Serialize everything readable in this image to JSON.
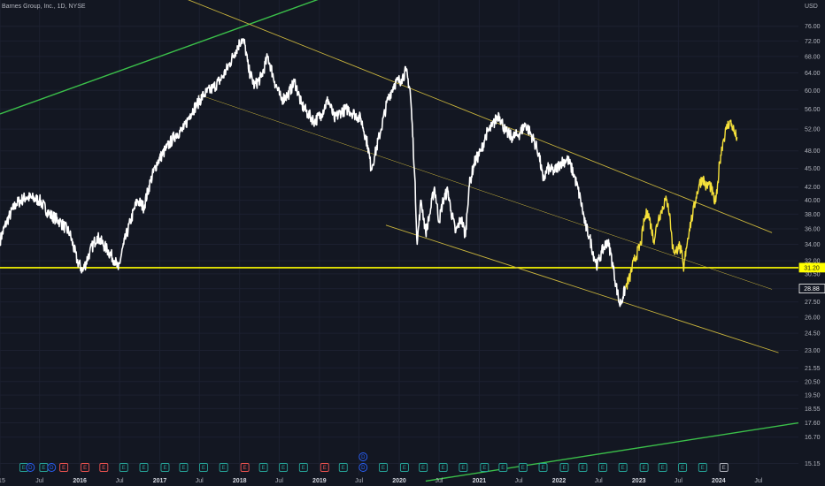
{
  "header": {
    "title": "Barnes Group, Inc., 1D, NYSE"
  },
  "colors": {
    "background": "#131722",
    "price_white": "#ffffff",
    "price_recent": "#f5e03a",
    "support": "#ffff00",
    "channel": "#c9b43c",
    "trend_green": "#3bc04a",
    "earnings_green": "#26a69a",
    "earnings_red": "#ef5350",
    "dividend_blue": "#2962ff",
    "axis_text": "#b2b5be"
  },
  "chart_data": {
    "type": "line",
    "title": "",
    "currency": "USD",
    "y_scale": "log",
    "ylim": [
      14.5,
      80
    ],
    "xlim": [
      "2015-01-01",
      "2024-12-31"
    ],
    "y_ticks": [
      15.15,
      16.7,
      17.6,
      18.55,
      19.5,
      20.5,
      21.55,
      23.0,
      24.5,
      26.0,
      27.5,
      28.88,
      30.5,
      31.2,
      32.0,
      34.0,
      36.0,
      38.0,
      40.0,
      42.0,
      45.0,
      48.0,
      52.0,
      56.0,
      60.0,
      64.0,
      68.0,
      72.0,
      76.0
    ],
    "y_tick_labels": [
      "15.15",
      "16.70",
      "17.60",
      "18.55",
      "19.50",
      "20.50",
      "21.55",
      "23.00",
      "24.50",
      "26.00",
      "27.50",
      "28.88",
      "30.50",
      "31.20",
      "32.00",
      "34.00",
      "36.00",
      "38.00",
      "40.00",
      "42.00",
      "45.00",
      "48.00",
      "52.00",
      "56.00",
      "60.00",
      "64.00",
      "68.00",
      "72.00",
      "76.00"
    ],
    "x_ticks": [
      {
        "label": "015",
        "date": "2015-01-01",
        "year": false
      },
      {
        "label": "Jul",
        "date": "2015-07-01",
        "year": false
      },
      {
        "label": "2016",
        "date": "2016-01-01",
        "year": true
      },
      {
        "label": "Jul",
        "date": "2016-07-01",
        "year": false
      },
      {
        "label": "2017",
        "date": "2017-01-01",
        "year": true
      },
      {
        "label": "Jul",
        "date": "2017-07-01",
        "year": false
      },
      {
        "label": "2018",
        "date": "2018-01-01",
        "year": true
      },
      {
        "label": "Jul",
        "date": "2018-07-01",
        "year": false
      },
      {
        "label": "2019",
        "date": "2019-01-01",
        "year": true
      },
      {
        "label": "Jul",
        "date": "2019-07-01",
        "year": false
      },
      {
        "label": "2020",
        "date": "2020-01-01",
        "year": true
      },
      {
        "label": "Jul",
        "date": "2020-07-01",
        "year": false
      },
      {
        "label": "2021",
        "date": "2021-01-01",
        "year": true
      },
      {
        "label": "Jul",
        "date": "2021-07-01",
        "year": false
      },
      {
        "label": "2022",
        "date": "2022-01-01",
        "year": true
      },
      {
        "label": "Jul",
        "date": "2022-07-01",
        "year": false
      },
      {
        "label": "2023",
        "date": "2023-01-01",
        "year": true
      },
      {
        "label": "Jul",
        "date": "2023-07-01",
        "year": false
      },
      {
        "label": "2024",
        "date": "2024-01-01",
        "year": true
      },
      {
        "label": "Jul",
        "date": "2024-07-01",
        "year": false
      }
    ],
    "series": [
      {
        "color": "#ffffff",
        "points": [
          [
            "2015-01-01",
            34.5
          ],
          [
            "2015-02-01",
            37.0
          ],
          [
            "2015-03-15",
            39.5
          ],
          [
            "2015-05-01",
            40.5
          ],
          [
            "2015-07-01",
            40.0
          ],
          [
            "2015-08-15",
            38.0
          ],
          [
            "2015-10-01",
            37.0
          ],
          [
            "2015-11-15",
            35.5
          ],
          [
            "2015-12-20",
            32.0
          ],
          [
            "2016-01-15",
            30.8
          ],
          [
            "2016-02-15",
            33.0
          ],
          [
            "2016-03-20",
            35.0
          ],
          [
            "2016-05-01",
            33.5
          ],
          [
            "2016-06-10",
            32.0
          ],
          [
            "2016-06-25",
            31.0
          ],
          [
            "2016-07-20",
            34.0
          ],
          [
            "2016-08-20",
            37.0
          ],
          [
            "2016-09-20",
            40.0
          ],
          [
            "2016-10-20",
            39.0
          ],
          [
            "2016-11-20",
            43.0
          ],
          [
            "2016-12-20",
            46.0
          ],
          [
            "2017-02-01",
            48.5
          ],
          [
            "2017-03-15",
            51.0
          ],
          [
            "2017-04-20",
            52.0
          ],
          [
            "2017-05-20",
            55.0
          ],
          [
            "2017-06-20",
            57.0
          ],
          [
            "2017-07-20",
            59.0
          ],
          [
            "2017-09-01",
            60.5
          ],
          [
            "2017-10-15",
            63.0
          ],
          [
            "2017-11-15",
            66.0
          ],
          [
            "2017-12-10",
            69.0
          ],
          [
            "2018-01-10",
            72.5
          ],
          [
            "2018-01-25",
            71.0
          ],
          [
            "2018-02-10",
            65.0
          ],
          [
            "2018-03-10",
            61.0
          ],
          [
            "2018-04-10",
            63.0
          ],
          [
            "2018-05-10",
            68.0
          ],
          [
            "2018-06-10",
            62.0
          ],
          [
            "2018-07-10",
            58.0
          ],
          [
            "2018-08-10",
            59.0
          ],
          [
            "2018-09-10",
            62.0
          ],
          [
            "2018-10-10",
            57.0
          ],
          [
            "2018-11-10",
            55.0
          ],
          [
            "2018-12-10",
            53.5
          ],
          [
            "2019-01-10",
            55.0
          ],
          [
            "2019-02-10",
            58.0
          ],
          [
            "2019-03-10",
            54.0
          ],
          [
            "2019-04-10",
            55.5
          ],
          [
            "2019-05-10",
            56.0
          ],
          [
            "2019-06-10",
            55.0
          ],
          [
            "2019-07-10",
            54.0
          ],
          [
            "2019-08-10",
            49.0
          ],
          [
            "2019-08-25",
            45.0
          ],
          [
            "2019-09-10",
            47.0
          ],
          [
            "2019-10-10",
            52.0
          ],
          [
            "2019-11-10",
            58.0
          ],
          [
            "2019-12-10",
            61.5
          ],
          [
            "2020-01-10",
            62.5
          ],
          [
            "2020-02-01",
            64.5
          ],
          [
            "2020-02-20",
            60.0
          ],
          [
            "2020-03-10",
            45.0
          ],
          [
            "2020-03-23",
            34.0
          ],
          [
            "2020-04-10",
            40.0
          ],
          [
            "2020-05-01",
            35.5
          ],
          [
            "2020-05-20",
            38.0
          ],
          [
            "2020-06-10",
            42.0
          ],
          [
            "2020-07-01",
            37.0
          ],
          [
            "2020-07-20",
            40.0
          ],
          [
            "2020-08-10",
            41.5
          ],
          [
            "2020-08-25",
            38.5
          ],
          [
            "2020-09-15",
            35.5
          ],
          [
            "2020-10-10",
            37.5
          ],
          [
            "2020-10-30",
            35.0
          ],
          [
            "2020-11-15",
            42.0
          ],
          [
            "2020-12-10",
            46.0
          ],
          [
            "2021-01-10",
            48.0
          ],
          [
            "2021-02-01",
            51.0
          ],
          [
            "2021-03-01",
            52.5
          ],
          [
            "2021-04-01",
            55.0
          ],
          [
            "2021-05-01",
            51.5
          ],
          [
            "2021-06-01",
            50.5
          ],
          [
            "2021-07-01",
            51.0
          ],
          [
            "2021-08-01",
            53.0
          ],
          [
            "2021-09-01",
            50.5
          ],
          [
            "2021-10-01",
            47.5
          ],
          [
            "2021-10-20",
            43.0
          ],
          [
            "2021-11-10",
            45.0
          ],
          [
            "2021-12-10",
            44.5
          ],
          [
            "2022-01-10",
            46.0
          ],
          [
            "2022-02-10",
            46.5
          ],
          [
            "2022-03-10",
            44.0
          ],
          [
            "2022-04-10",
            40.0
          ],
          [
            "2022-05-01",
            36.5
          ],
          [
            "2022-05-20",
            35.0
          ],
          [
            "2022-06-10",
            32.5
          ],
          [
            "2022-06-25",
            31.5
          ],
          [
            "2022-07-15",
            33.0
          ],
          [
            "2022-08-10",
            34.5
          ],
          [
            "2022-08-25",
            33.0
          ],
          [
            "2022-09-10",
            30.5
          ],
          [
            "2022-09-25",
            28.5
          ],
          [
            "2022-10-05",
            27.2
          ],
          [
            "2022-10-20",
            28.0
          ],
          [
            "2022-11-01",
            29.0
          ]
        ]
      },
      {
        "color": "#f5e03a",
        "points": [
          [
            "2022-11-01",
            29.0
          ],
          [
            "2022-11-20",
            30.0
          ],
          [
            "2022-12-10",
            32.0
          ],
          [
            "2023-01-10",
            34.0
          ],
          [
            "2023-01-25",
            37.0
          ],
          [
            "2023-02-10",
            38.5
          ],
          [
            "2023-02-25",
            36.5
          ],
          [
            "2023-03-10",
            34.5
          ],
          [
            "2023-04-01",
            37.5
          ],
          [
            "2023-04-15",
            38.5
          ],
          [
            "2023-05-01",
            40.0
          ],
          [
            "2023-05-15",
            39.5
          ],
          [
            "2023-05-25",
            37.0
          ],
          [
            "2023-06-05",
            33.5
          ],
          [
            "2023-06-20",
            33.0
          ],
          [
            "2023-07-01",
            34.0
          ],
          [
            "2023-07-15",
            33.0
          ],
          [
            "2023-07-25",
            30.8
          ],
          [
            "2023-08-05",
            33.5
          ],
          [
            "2023-08-20",
            36.0
          ],
          [
            "2023-09-05",
            38.0
          ],
          [
            "2023-09-20",
            40.5
          ],
          [
            "2023-10-05",
            42.5
          ],
          [
            "2023-10-20",
            43.5
          ],
          [
            "2023-11-05",
            42.0
          ],
          [
            "2023-11-20",
            42.5
          ],
          [
            "2023-12-05",
            41.0
          ],
          [
            "2023-12-15",
            39.5
          ],
          [
            "2023-12-25",
            41.0
          ],
          [
            "2024-01-05",
            46.0
          ],
          [
            "2024-01-20",
            49.5
          ],
          [
            "2024-02-05",
            52.0
          ],
          [
            "2024-02-20",
            53.5
          ],
          [
            "2024-03-05",
            52.5
          ],
          [
            "2024-03-15",
            51.0
          ],
          [
            "2024-03-25",
            50.5
          ]
        ]
      }
    ],
    "lines": [
      {
        "kind": "support",
        "color": "#ffff00",
        "width": 1.6,
        "from": [
          "2015-01-01",
          31.2
        ],
        "to": [
          "2024-12-31",
          31.2
        ]
      },
      {
        "kind": "trend-upper",
        "color": "#3bc04a",
        "width": 1.4,
        "from": [
          "2015-01-01",
          55.0
        ],
        "to": [
          "2019-12-15",
          93.0
        ]
      },
      {
        "kind": "trend-lower",
        "color": "#3bc04a",
        "width": 1.4,
        "from": [
          "2020-05-01",
          14.2
        ],
        "to": [
          "2024-12-31",
          17.6
        ]
      },
      {
        "kind": "channel-upper",
        "color": "#c9b43c",
        "width": 0.9,
        "from": [
          "2016-10-01",
          90.0
        ],
        "to": [
          "2024-09-01",
          35.5
        ]
      },
      {
        "kind": "channel-mid",
        "color": "#c9b43c",
        "width": 0.5,
        "from": [
          "2017-07-01",
          59.0
        ],
        "to": [
          "2024-09-01",
          28.8
        ]
      },
      {
        "kind": "channel-lower",
        "color": "#c9b43c",
        "width": 0.9,
        "from": [
          "2019-11-01",
          36.5
        ],
        "to": [
          "2024-10-01",
          22.8
        ]
      }
    ],
    "markers": [
      {
        "label": "31.20",
        "value": 31.2,
        "bg": "#ffff00",
        "fg": "#131722"
      },
      {
        "label": "28.88",
        "value": 28.88,
        "bg": "#131722",
        "fg": "#ffffff",
        "border": "#ffffff"
      }
    ],
    "events": [
      {
        "letter": "E",
        "date": "2015-04-20",
        "kind": "earnings-green"
      },
      {
        "letter": "D",
        "date": "2015-05-20",
        "kind": "dividend"
      },
      {
        "letter": "E",
        "date": "2015-07-20",
        "kind": "earnings-green"
      },
      {
        "letter": "D",
        "date": "2015-08-25",
        "kind": "dividend"
      },
      {
        "letter": "E",
        "date": "2015-10-20",
        "kind": "earnings-red"
      },
      {
        "letter": "E",
        "date": "2016-01-25",
        "kind": "earnings-red"
      },
      {
        "letter": "E",
        "date": "2016-04-20",
        "kind": "earnings-red"
      },
      {
        "letter": "E",
        "date": "2016-07-20",
        "kind": "earnings-green"
      },
      {
        "letter": "E",
        "date": "2016-10-20",
        "kind": "earnings-green"
      },
      {
        "letter": "E",
        "date": "2017-01-25",
        "kind": "earnings-green"
      },
      {
        "letter": "E",
        "date": "2017-04-20",
        "kind": "earnings-green"
      },
      {
        "letter": "E",
        "date": "2017-07-20",
        "kind": "earnings-green"
      },
      {
        "letter": "E",
        "date": "2017-10-20",
        "kind": "earnings-green"
      },
      {
        "letter": "E",
        "date": "2018-01-25",
        "kind": "earnings-red"
      },
      {
        "letter": "E",
        "date": "2018-04-20",
        "kind": "earnings-green"
      },
      {
        "letter": "E",
        "date": "2018-07-20",
        "kind": "earnings-green"
      },
      {
        "letter": "E",
        "date": "2018-10-20",
        "kind": "earnings-green"
      },
      {
        "letter": "E",
        "date": "2019-01-25",
        "kind": "earnings-red"
      },
      {
        "letter": "E",
        "date": "2019-04-20",
        "kind": "earnings-green"
      },
      {
        "letter": "D",
        "date": "2019-07-20",
        "kind": "dividend"
      },
      {
        "letter": "D",
        "date": "2019-07-20",
        "kind": "dividend-top"
      },
      {
        "letter": "E",
        "date": "2019-10-20",
        "kind": "earnings-green"
      },
      {
        "letter": "E",
        "date": "2020-01-25",
        "kind": "earnings-green"
      },
      {
        "letter": "E",
        "date": "2020-04-20",
        "kind": "earnings-green"
      },
      {
        "letter": "E",
        "date": "2020-07-20",
        "kind": "earnings-green"
      },
      {
        "letter": "E",
        "date": "2020-10-20",
        "kind": "earnings-green"
      },
      {
        "letter": "E",
        "date": "2021-01-25",
        "kind": "earnings-green"
      },
      {
        "letter": "E",
        "date": "2021-04-20",
        "kind": "earnings-green"
      },
      {
        "letter": "E",
        "date": "2021-07-20",
        "kind": "earnings-green"
      },
      {
        "letter": "E",
        "date": "2021-10-20",
        "kind": "earnings-green"
      },
      {
        "letter": "E",
        "date": "2022-01-25",
        "kind": "earnings-green"
      },
      {
        "letter": "E",
        "date": "2022-04-20",
        "kind": "earnings-green"
      },
      {
        "letter": "E",
        "date": "2022-07-20",
        "kind": "earnings-green"
      },
      {
        "letter": "E",
        "date": "2022-10-20",
        "kind": "earnings-green"
      },
      {
        "letter": "E",
        "date": "2023-01-25",
        "kind": "earnings-green"
      },
      {
        "letter": "E",
        "date": "2023-04-20",
        "kind": "earnings-green"
      },
      {
        "letter": "E",
        "date": "2023-07-20",
        "kind": "earnings-green"
      },
      {
        "letter": "E",
        "date": "2023-10-20",
        "kind": "earnings-green"
      },
      {
        "letter": "E",
        "date": "2024-01-25",
        "kind": "earnings-outline"
      }
    ]
  }
}
